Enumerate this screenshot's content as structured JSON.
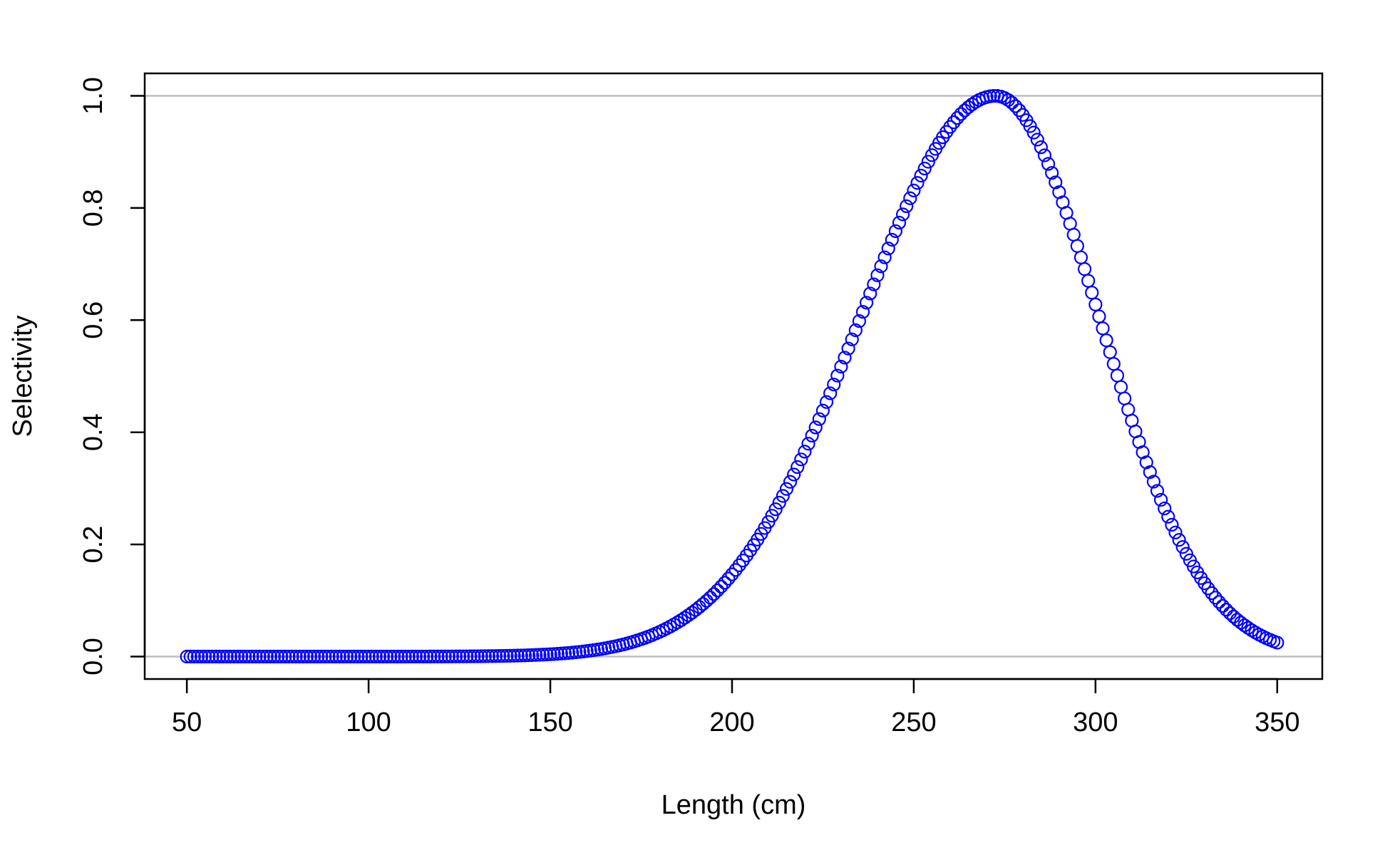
{
  "chart_data": {
    "type": "scatter",
    "title": "",
    "xlabel": "Length (cm)",
    "ylabel": "Selectivity",
    "xlim": [
      38.4,
      362.4
    ],
    "ylim": [
      -0.04,
      1.04
    ],
    "x_ticks": [
      "50",
      "100",
      "150",
      "200",
      "250",
      "300",
      "350"
    ],
    "y_ticks": [
      "0.0",
      "0.2",
      "0.4",
      "0.6",
      "0.8",
      "1.0"
    ],
    "reference_lines_y": [
      0,
      1
    ],
    "grid": false,
    "marker": "open-circle",
    "colors": {
      "points": "#0000ff",
      "reference_line": "#bebebe",
      "axis": "#000000"
    },
    "series": [
      {
        "x_start": 50,
        "x_end": 350,
        "x_step": 1,
        "curve": "double-normal",
        "peak_x": 272.5,
        "peak_y": 1.0,
        "ascending_sd": 37,
        "descending_sd": 28.5,
        "key_points": [
          {
            "x": 50,
            "y": 0.0
          },
          {
            "x": 100,
            "y": 0.0
          },
          {
            "x": 150,
            "y": 0.015
          },
          {
            "x": 175,
            "y": 0.065
          },
          {
            "x": 200,
            "y": 0.22
          },
          {
            "x": 225,
            "y": 0.52
          },
          {
            "x": 250,
            "y": 0.86
          },
          {
            "x": 272,
            "y": 1.0
          },
          {
            "x": 300,
            "y": 0.68
          },
          {
            "x": 325,
            "y": 0.2
          },
          {
            "x": 350,
            "y": 0.022
          }
        ]
      }
    ]
  }
}
